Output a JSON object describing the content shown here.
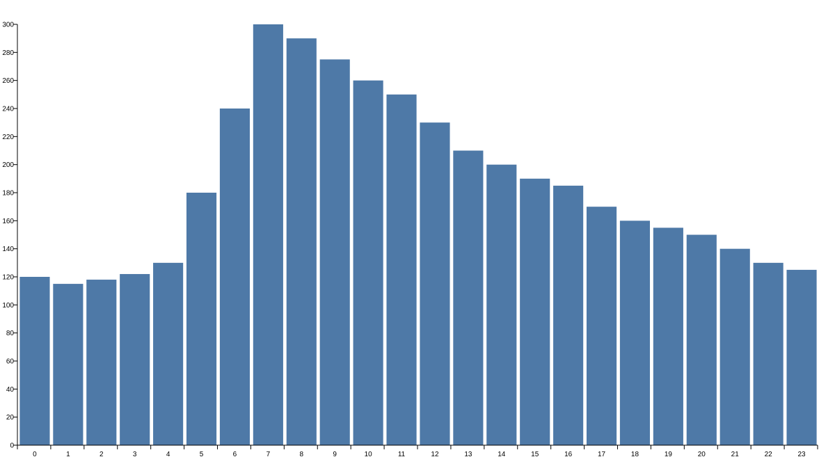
{
  "chart_data": {
    "type": "bar",
    "title": "",
    "xlabel": "",
    "ylabel": "",
    "categories": [
      "0",
      "1",
      "2",
      "3",
      "4",
      "5",
      "6",
      "7",
      "8",
      "9",
      "10",
      "11",
      "12",
      "13",
      "14",
      "15",
      "16",
      "17",
      "18",
      "19",
      "20",
      "21",
      "22",
      "23"
    ],
    "values": [
      120,
      115,
      118,
      122,
      130,
      180,
      240,
      300,
      290,
      275,
      260,
      250,
      230,
      210,
      200,
      190,
      185,
      170,
      160,
      155,
      150,
      140,
      130,
      125
    ],
    "ylim": [
      0,
      300
    ],
    "yticks": [
      0,
      20,
      40,
      60,
      80,
      100,
      120,
      140,
      160,
      180,
      200,
      220,
      240,
      260,
      280,
      300
    ],
    "grid": false,
    "bar_color": "#4e79a7"
  }
}
